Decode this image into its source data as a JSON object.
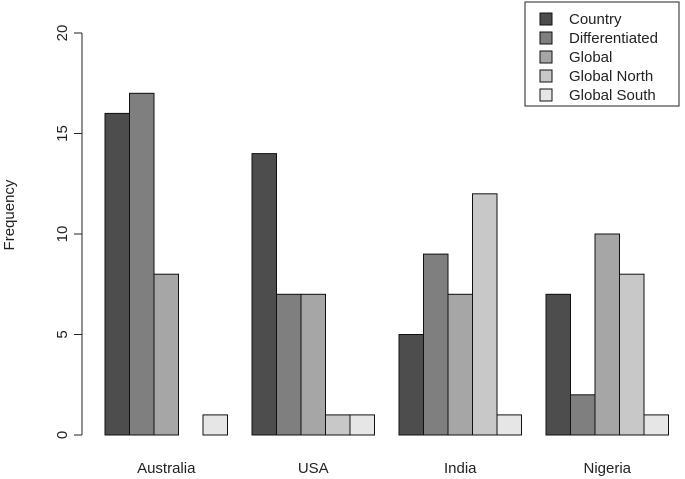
{
  "chart_data": {
    "type": "bar",
    "categories": [
      "Australia",
      "USA",
      "India",
      "Nigeria"
    ],
    "series": [
      {
        "name": "Country",
        "values": [
          16,
          14,
          5,
          7
        ],
        "color": "#4d4d4d"
      },
      {
        "name": "Differentiated",
        "values": [
          17,
          7,
          9,
          2
        ],
        "color": "#7f7f7f"
      },
      {
        "name": "Global",
        "values": [
          8,
          7,
          7,
          10
        ],
        "color": "#a6a6a6"
      },
      {
        "name": "Global North",
        "values": [
          0,
          1,
          12,
          8
        ],
        "color": "#c8c8c8"
      },
      {
        "name": "Global South",
        "values": [
          1,
          1,
          1,
          1
        ],
        "color": "#e6e6e6"
      }
    ],
    "ylabel": "Frequency",
    "xlabel": "",
    "ylim": [
      0,
      20
    ],
    "yticks": [
      0,
      5,
      10,
      15,
      20
    ],
    "grid": false,
    "legend_position": "top-right"
  }
}
